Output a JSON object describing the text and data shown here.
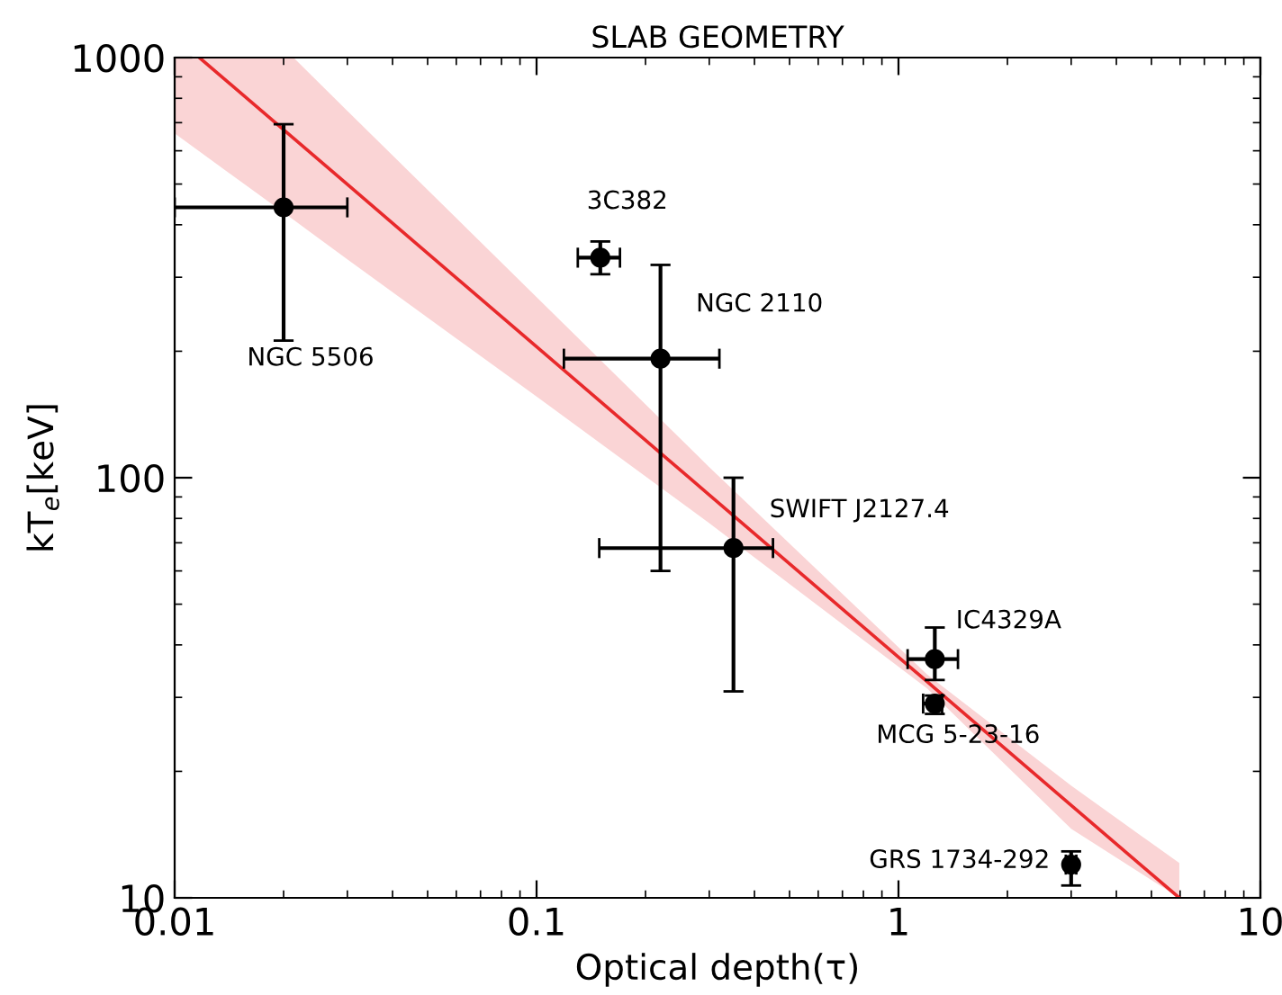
{
  "chart_data": {
    "type": "scatter",
    "title": "SLAB GEOMETRY",
    "xlabel": "Optical depth(τ)",
    "ylabel": "kT$_{e}$[keV]",
    "log": "xy",
    "xlim": [
      0.01,
      10
    ],
    "ylim": [
      10,
      1000
    ],
    "xticks": [
      0.01,
      0.1,
      1,
      10
    ],
    "yticks": [
      10,
      100,
      1000
    ],
    "grid": false,
    "legend": false,
    "marker": "circle",
    "series": [
      {
        "color": "#000000",
        "x": [
          0.02,
          0.15,
          0.22,
          0.35,
          1.26,
          1.26,
          3.0
        ],
        "values": [
          440,
          334,
          192,
          68,
          37,
          29,
          12
        ],
        "errors": [
          [
            212,
            694
          ],
          [
            305,
            365
          ],
          [
            60,
            321
          ],
          [
            31,
            100
          ],
          [
            33,
            44
          ],
          [
            27.4,
            30.3
          ],
          [
            10.7,
            12.9
          ]
        ],
        "xerrors": [
          [
            0.01,
            0.03
          ],
          [
            0.13,
            0.17
          ],
          [
            0.119,
            0.32
          ],
          [
            0.149,
            0.45
          ],
          [
            1.06,
            1.46
          ],
          [
            1.17,
            1.32
          ],
          [
            2.9,
            3.1
          ]
        ]
      },
      {
        "type": "line",
        "color": "#e8292b",
        "line_style": "solid",
        "marker": "none",
        "x": [
          0.01,
          0.0117,
          0.0213,
          0.03,
          0.1,
          0.3,
          1.2,
          3,
          5.97
        ],
        "values": [
          null,
          1000,
          643,
          499,
          205,
          91,
          32.7,
          16.6,
          10
        ],
        "lower": [
          660,
          598,
          411,
          331,
          156,
          78,
          31.5,
          14.6,
          10
        ],
        "upper": [
          1000,
          1000,
          1000,
          747,
          269,
          106,
          34,
          18.5,
          12.1
        ]
      }
    ],
    "annotations": [
      {
        "text": "NGC 5506",
        "x": 0.02,
        "y": 212
      },
      {
        "text": "3C382",
        "x": 0.15,
        "y": 334
      },
      {
        "text": "NGC 2110",
        "x": 0.22,
        "y": 192
      },
      {
        "text": "SWIFT J2127.4",
        "x": 0.35,
        "y": 68
      },
      {
        "text": "IC4329A",
        "x": 1.26,
        "y": 37
      },
      {
        "text": "MCG 5-23-16",
        "x": 1.26,
        "y": 29
      },
      {
        "text": "GRS 1734-292",
        "x": 3.0,
        "y": 12
      }
    ]
  }
}
